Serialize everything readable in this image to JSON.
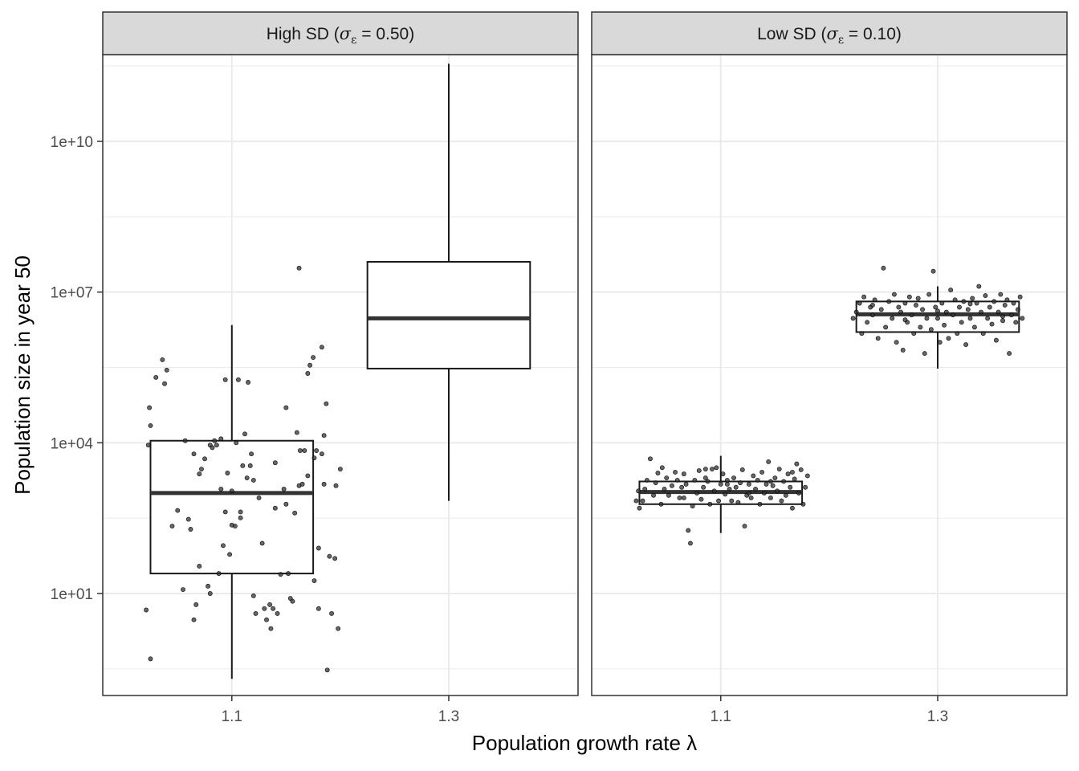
{
  "chart_data": {
    "type": "boxplot",
    "xlabel": "Population growth rate λ",
    "ylabel": "Population size in year 50",
    "y_scale": "log10",
    "ylim": [
      0.07,
      3200000000000.0
    ],
    "y_ticks": [
      10.0,
      10000.0,
      10000000.0,
      10000000000.0
    ],
    "y_tick_labels": [
      "1e+01",
      "1e+04",
      "1e+07",
      "1e+10"
    ],
    "categories": [
      "1.1",
      "1.3"
    ],
    "grid": true,
    "legend": "none",
    "colors": {
      "box": "#1a1a1a",
      "median": "#333333",
      "point": "#333333",
      "strip_bg": "#d9d9d9",
      "grid": "#ebebeb"
    },
    "panels": [
      {
        "title": "High SD (σε = 0.50)",
        "title_main": "High SD (",
        "title_sigma": "σ",
        "title_sub": "ε",
        "title_tail": " = 0.50)",
        "boxes": [
          {
            "category": "1.1",
            "q1": 25,
            "median": 1000,
            "q3": 11000,
            "whisker_low": 0.2,
            "whisker_high": 2200000
          },
          {
            "category": "1.3",
            "q1": 300000,
            "median": 3000000,
            "q3": 40000000,
            "whisker_low": 700,
            "whisker_high": 350000000000
          }
        ],
        "points": [
          [
            1.021,
            4.7
          ],
          [
            1.025,
            0.5
          ],
          [
            1.023,
            9000
          ],
          [
            1.024,
            50000
          ],
          [
            1.025,
            22000
          ],
          [
            1.03,
            200000
          ],
          [
            1.038,
            150000
          ],
          [
            1.04,
            280000
          ],
          [
            1.036,
            450000
          ],
          [
            1.05,
            450
          ],
          [
            1.057,
            11000
          ],
          [
            1.045,
            220
          ],
          [
            1.06,
            300
          ],
          [
            1.062,
            190
          ],
          [
            1.065,
            6000
          ],
          [
            1.07,
            2400
          ],
          [
            1.072,
            3000
          ],
          [
            1.075,
            4800
          ],
          [
            1.08,
            9000
          ],
          [
            1.082,
            8000
          ],
          [
            1.084,
            11000
          ],
          [
            1.086,
            9000
          ],
          [
            1.09,
            12000
          ],
          [
            1.092,
            90
          ],
          [
            1.094,
            420
          ],
          [
            1.088,
            25
          ],
          [
            1.078,
            14
          ],
          [
            1.08,
            10
          ],
          [
            1.07,
            35
          ],
          [
            1.065,
            3
          ],
          [
            1.055,
            12
          ],
          [
            1.067,
            6
          ],
          [
            1.1,
            230
          ],
          [
            1.103,
            220
          ],
          [
            1.108,
            320
          ],
          [
            1.112,
            15000
          ],
          [
            1.114,
            2000
          ],
          [
            1.118,
            6000
          ],
          [
            1.12,
            9
          ],
          [
            1.122,
            4
          ],
          [
            1.098,
            60
          ],
          [
            1.094,
            180000
          ],
          [
            1.1,
            1100
          ],
          [
            1.106,
            180000
          ],
          [
            1.108,
            420
          ],
          [
            1.115,
            160000
          ],
          [
            1.117,
            3500
          ],
          [
            1.12,
            1800
          ],
          [
            1.125,
            800
          ],
          [
            1.128,
            100
          ],
          [
            1.13,
            5
          ],
          [
            1.135,
            6
          ],
          [
            1.138,
            5
          ],
          [
            1.132,
            3
          ],
          [
            1.14,
            4000
          ],
          [
            1.142,
            4
          ],
          [
            1.145,
            24
          ],
          [
            1.148,
            1200
          ],
          [
            1.136,
            2
          ],
          [
            1.14,
            500
          ],
          [
            1.152,
            25
          ],
          [
            1.154,
            8
          ],
          [
            1.156,
            7
          ],
          [
            1.158,
            400
          ],
          [
            1.16,
            16000
          ],
          [
            1.162,
            1400
          ],
          [
            1.163,
            7000
          ],
          [
            1.165,
            1500
          ],
          [
            1.167,
            7000
          ],
          [
            1.17,
            240000
          ],
          [
            1.172,
            350000
          ],
          [
            1.175,
            500000
          ],
          [
            1.176,
            5000
          ],
          [
            1.178,
            7000
          ],
          [
            1.18,
            80
          ],
          [
            1.183,
            800000
          ],
          [
            1.185,
            1500
          ],
          [
            1.187,
            60000
          ],
          [
            1.176,
            18
          ],
          [
            1.18,
            5
          ],
          [
            1.183,
            6000
          ],
          [
            1.19,
            55
          ],
          [
            1.195,
            50
          ],
          [
            1.2,
            3000
          ],
          [
            1.188,
            0.3
          ],
          [
            1.192,
            4
          ],
          [
            1.198,
            2
          ],
          [
            1.162,
            30000000
          ],
          [
            1.11,
            3500
          ],
          [
            1.104,
            10000
          ],
          [
            1.096,
            2500
          ],
          [
            1.09,
            1200
          ],
          [
            1.17,
            2200
          ],
          [
            1.196,
            1400
          ],
          [
            1.185,
            14000
          ],
          [
            1.15,
            600
          ],
          [
            1.15,
            50000
          ]
        ]
      },
      {
        "title": "Low SD (σε = 0.10)",
        "title_main": "Low SD (",
        "title_sigma": "σ",
        "title_sub": "ε",
        "title_tail": " = 0.10)",
        "boxes": [
          {
            "category": "1.1",
            "q1": 600,
            "median": 1050,
            "q3": 1700,
            "whisker_low": 160,
            "whisker_high": 5500
          },
          {
            "category": "1.3",
            "q1": 1600000,
            "median": 3600000,
            "q3": 6500000,
            "whisker_low": 300000,
            "whisker_high": 13000000
          }
        ],
        "points": [
          [
            1.022,
            700
          ],
          [
            1.025,
            500
          ],
          [
            1.028,
            700
          ],
          [
            1.03,
            1200
          ],
          [
            1.032,
            1800
          ],
          [
            1.035,
            4800
          ],
          [
            1.038,
            900
          ],
          [
            1.04,
            1600
          ],
          [
            1.042,
            2500
          ],
          [
            1.045,
            600
          ],
          [
            1.048,
            1200
          ],
          [
            1.05,
            2000
          ],
          [
            1.052,
            900
          ],
          [
            1.055,
            1400
          ],
          [
            1.058,
            2600
          ],
          [
            1.06,
            1800
          ],
          [
            1.062,
            800
          ],
          [
            1.064,
            1300
          ],
          [
            1.066,
            2400
          ],
          [
            1.068,
            1500
          ],
          [
            1.07,
            180
          ],
          [
            1.072,
            100
          ],
          [
            1.074,
            550
          ],
          [
            1.076,
            1800
          ],
          [
            1.078,
            1000
          ],
          [
            1.08,
            2800
          ],
          [
            1.082,
            750
          ],
          [
            1.084,
            1300
          ],
          [
            1.086,
            3000
          ],
          [
            1.088,
            1700
          ],
          [
            1.09,
            600
          ],
          [
            1.092,
            3000
          ],
          [
            1.094,
            1100
          ],
          [
            1.096,
            3200
          ],
          [
            1.098,
            700
          ],
          [
            1.1,
            1500
          ],
          [
            1.102,
            2400
          ],
          [
            1.104,
            950
          ],
          [
            1.106,
            1800
          ],
          [
            1.108,
            1200
          ],
          [
            1.11,
            700
          ],
          [
            1.112,
            2000
          ],
          [
            1.114,
            1300
          ],
          [
            1.116,
            650
          ],
          [
            1.118,
            1600
          ],
          [
            1.12,
            2900
          ],
          [
            1.122,
            220
          ],
          [
            1.124,
            900
          ],
          [
            1.126,
            1500
          ],
          [
            1.128,
            800
          ],
          [
            1.13,
            2200
          ],
          [
            1.132,
            1200
          ],
          [
            1.134,
            1800
          ],
          [
            1.136,
            600
          ],
          [
            1.138,
            2600
          ],
          [
            1.14,
            1000
          ],
          [
            1.142,
            1500
          ],
          [
            1.144,
            4200
          ],
          [
            1.146,
            800
          ],
          [
            1.148,
            1400
          ],
          [
            1.15,
            2000
          ],
          [
            1.152,
            1100
          ],
          [
            1.154,
            3000
          ],
          [
            1.156,
            700
          ],
          [
            1.158,
            1700
          ],
          [
            1.16,
            900
          ],
          [
            1.162,
            2400
          ],
          [
            1.164,
            1300
          ],
          [
            1.166,
            500
          ],
          [
            1.168,
            1900
          ],
          [
            1.17,
            3800
          ],
          [
            1.172,
            1000
          ],
          [
            1.174,
            2900
          ],
          [
            1.176,
            600
          ],
          [
            1.178,
            1300
          ],
          [
            1.18,
            2200
          ],
          [
            1.024,
            1100
          ],
          [
            1.046,
            3200
          ],
          [
            1.066,
            800
          ],
          [
            1.086,
            2000
          ],
          [
            1.106,
            1500
          ],
          [
            1.126,
            1000
          ],
          [
            1.146,
            1700
          ],
          [
            1.166,
            2600
          ],
          [
            1.222,
            3000000
          ],
          [
            1.225,
            4000000
          ],
          [
            1.228,
            6000000
          ],
          [
            1.23,
            1500000
          ],
          [
            1.232,
            8000000
          ],
          [
            1.235,
            2500000
          ],
          [
            1.238,
            5000000
          ],
          [
            1.24,
            3500000
          ],
          [
            1.242,
            7000000
          ],
          [
            1.245,
            1200000
          ],
          [
            1.248,
            4500000
          ],
          [
            1.25,
            30000000
          ],
          [
            1.252,
            2000000
          ],
          [
            1.255,
            6500000
          ],
          [
            1.258,
            3000000
          ],
          [
            1.26,
            9000000
          ],
          [
            1.262,
            1000000
          ],
          [
            1.264,
            5000000
          ],
          [
            1.266,
            4000000
          ],
          [
            1.268,
            700000
          ],
          [
            1.27,
            6000000
          ],
          [
            1.272,
            2500000
          ],
          [
            1.274,
            8000000
          ],
          [
            1.276,
            3500000
          ],
          [
            1.278,
            1500000
          ],
          [
            1.28,
            5500000
          ],
          [
            1.282,
            7500000
          ],
          [
            1.284,
            2000000
          ],
          [
            1.286,
            4500000
          ],
          [
            1.288,
            600000
          ],
          [
            1.29,
            3000000
          ],
          [
            1.292,
            9000000
          ],
          [
            1.294,
            1800000
          ],
          [
            1.296,
            26000000
          ],
          [
            1.298,
            5000000
          ],
          [
            1.3,
            3000000
          ],
          [
            1.302,
            1000000
          ],
          [
            1.304,
            6000000
          ],
          [
            1.306,
            2200000
          ],
          [
            1.308,
            4000000
          ],
          [
            1.31,
            1200000
          ],
          [
            1.312,
            11000000
          ],
          [
            1.314,
            3500000
          ],
          [
            1.316,
            7000000
          ],
          [
            1.318,
            1500000
          ],
          [
            1.32,
            5000000
          ],
          [
            1.322,
            2500000
          ],
          [
            1.324,
            6500000
          ],
          [
            1.326,
            900000
          ],
          [
            1.328,
            4500000
          ],
          [
            1.33,
            3000000
          ],
          [
            1.332,
            7500000
          ],
          [
            1.334,
            2000000
          ],
          [
            1.336,
            6000000
          ],
          [
            1.338,
            13000000
          ],
          [
            1.34,
            4000000
          ],
          [
            1.342,
            1500000
          ],
          [
            1.344,
            8500000
          ],
          [
            1.346,
            3000000
          ],
          [
            1.348,
            5000000
          ],
          [
            1.35,
            2300000
          ],
          [
            1.352,
            6500000
          ],
          [
            1.354,
            1100000
          ],
          [
            1.356,
            4000000
          ],
          [
            1.358,
            9000000
          ],
          [
            1.36,
            2700000
          ],
          [
            1.362,
            5500000
          ],
          [
            1.364,
            7000000
          ],
          [
            1.366,
            600000
          ],
          [
            1.368,
            3500000
          ],
          [
            1.37,
            6000000
          ],
          [
            1.372,
            2500000
          ],
          [
            1.374,
            4500000
          ],
          [
            1.376,
            8000000
          ],
          [
            1.378,
            3000000
          ],
          [
            1.24,
            5500000
          ],
          [
            1.27,
            2800000
          ],
          [
            1.3,
            4200000
          ],
          [
            1.33,
            5800000
          ],
          [
            1.36,
            3300000
          ]
        ]
      }
    ]
  }
}
